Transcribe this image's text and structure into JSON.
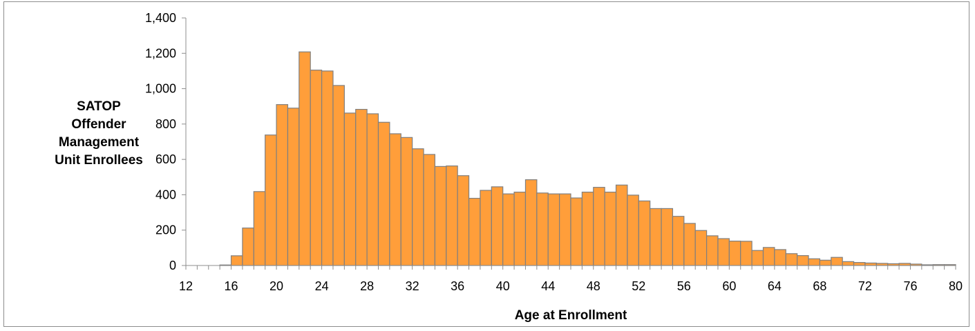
{
  "chart_data": {
    "type": "bar",
    "title": "",
    "ylabel_lines": [
      "SATOP",
      "Offender",
      "Management",
      "Unit Enrollees"
    ],
    "xlabel": "Age at Enrollment",
    "ylim": [
      0,
      1400
    ],
    "yticks": [
      0,
      200,
      400,
      600,
      800,
      1000,
      1200,
      1400
    ],
    "ytick_labels": [
      "0",
      "200",
      "400",
      "600",
      "800",
      "1,000",
      "1,200",
      "1,400"
    ],
    "xlim": [
      12,
      80
    ],
    "xticks": [
      12,
      16,
      20,
      24,
      28,
      32,
      36,
      40,
      44,
      48,
      52,
      56,
      60,
      64,
      68,
      72,
      76,
      80
    ],
    "bar_color": "#FF9E3A",
    "bar_edge_color": "#7F7F7F",
    "categories": [
      12,
      13,
      14,
      15,
      16,
      17,
      18,
      19,
      20,
      21,
      22,
      23,
      24,
      25,
      26,
      27,
      28,
      29,
      30,
      31,
      32,
      33,
      34,
      35,
      36,
      37,
      38,
      39,
      40,
      41,
      42,
      43,
      44,
      45,
      46,
      47,
      48,
      49,
      50,
      51,
      52,
      53,
      54,
      55,
      56,
      57,
      58,
      59,
      60,
      61,
      62,
      63,
      64,
      65,
      66,
      67,
      68,
      69,
      70,
      71,
      72,
      73,
      74,
      75,
      76,
      77,
      78,
      79
    ],
    "values": [
      0,
      0,
      0,
      3,
      55,
      212,
      418,
      738,
      910,
      890,
      1208,
      1105,
      1100,
      1018,
      862,
      883,
      858,
      810,
      745,
      724,
      660,
      628,
      560,
      563,
      508,
      380,
      425,
      445,
      405,
      415,
      485,
      410,
      405,
      405,
      382,
      415,
      442,
      415,
      455,
      398,
      365,
      322,
      322,
      278,
      238,
      198,
      168,
      152,
      138,
      137,
      85,
      102,
      90,
      67,
      56,
      38,
      30,
      46,
      22,
      17,
      14,
      12,
      10,
      12,
      8,
      4,
      5,
      5
    ]
  }
}
